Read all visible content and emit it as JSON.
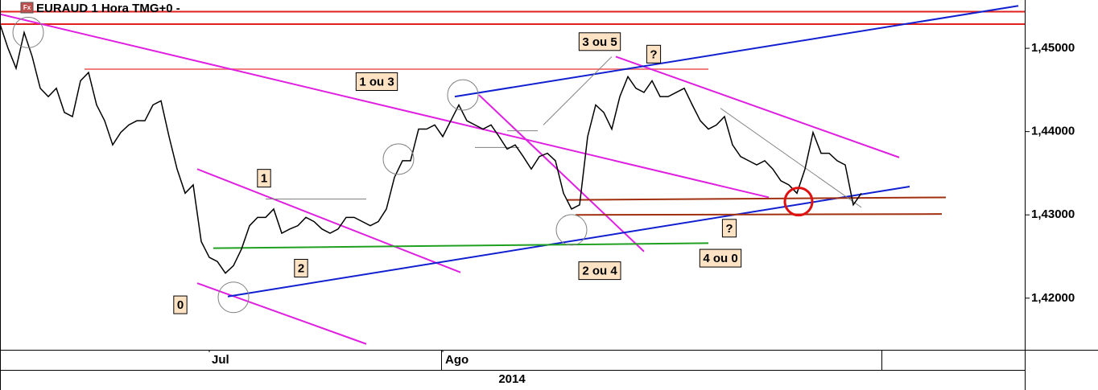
{
  "chart_data": {
    "type": "line",
    "title": "EURAUD 1 Hora TMG+0 -",
    "title_icon": "Fx",
    "period_label": "2014",
    "xlim": [
      0,
      127.3
    ],
    "xticks": [
      {
        "value": 26,
        "label": "Jul"
      },
      {
        "value": 55,
        "label": "Ago"
      }
    ],
    "ylim": [
      1.4138,
      1.4558
    ],
    "yticks": [
      {
        "value": 1.45,
        "label": "1,45000"
      },
      {
        "value": 1.44,
        "label": "1,44000"
      },
      {
        "value": 1.43,
        "label": "1,43000"
      },
      {
        "value": 1.42,
        "label": "1,42000"
      }
    ],
    "grid": false,
    "series": [
      {
        "color": "#000000",
        "values": [
          1.4529,
          1.45,
          1.4476,
          1.4519,
          1.449,
          1.4452,
          1.4442,
          1.4452,
          1.4423,
          1.4418,
          1.4461,
          1.4471,
          1.4432,
          1.4413,
          1.4384,
          1.4399,
          1.4408,
          1.4413,
          1.4413,
          1.4432,
          1.4437,
          1.4394,
          1.4355,
          1.4326,
          1.4336,
          1.4268,
          1.4249,
          1.4244,
          1.423,
          1.4239,
          1.4259,
          1.4287,
          1.4297,
          1.4297,
          1.4307,
          1.4278,
          1.4283,
          1.4287,
          1.4297,
          1.4292,
          1.4283,
          1.4278,
          1.4283,
          1.4297,
          1.4297,
          1.4292,
          1.4287,
          1.4292,
          1.4307,
          1.4345,
          1.4365,
          1.4365,
          1.4403,
          1.4403,
          1.4408,
          1.4394,
          1.4413,
          1.4432,
          1.4413,
          1.4408,
          1.4403,
          1.4408,
          1.4394,
          1.4379,
          1.4384,
          1.437,
          1.4355,
          1.437,
          1.4374,
          1.4365,
          1.4326,
          1.4307,
          1.4312,
          1.4394,
          1.4432,
          1.4423,
          1.4403,
          1.4442,
          1.4466,
          1.4452,
          1.4447,
          1.4461,
          1.4442,
          1.4442,
          1.4447,
          1.4452,
          1.4432,
          1.4413,
          1.4403,
          1.4408,
          1.4418,
          1.4384,
          1.437,
          1.4365,
          1.436,
          1.4365,
          1.4355,
          1.4341,
          1.4336,
          1.4326,
          1.4355,
          1.4399,
          1.4374,
          1.4374,
          1.4365,
          1.436,
          1.4312,
          1.4326
        ]
      }
    ],
    "trendlines": [
      {
        "color": "#e0201e",
        "x": [
          0,
          127.3
        ],
        "y": [
          1.4544,
          1.4544
        ]
      },
      {
        "color": "#e0201e",
        "x": [
          0,
          127.3
        ],
        "y": [
          1.4529,
          1.4529
        ]
      },
      {
        "color": "#f08080",
        "x": [
          10.5,
          88
        ],
        "y": [
          1.4475,
          1.4475
        ]
      },
      {
        "color": "#e020e0",
        "x": [
          0,
          95.5
        ],
        "y": [
          1.4541,
          1.4321
        ]
      },
      {
        "color": "#e020e0",
        "x": [
          24.5,
          57.2
        ],
        "y": [
          1.4355,
          1.4231
        ]
      },
      {
        "color": "#e020e0",
        "x": [
          24.5,
          45.5
        ],
        "y": [
          1.4218,
          1.4145
        ]
      },
      {
        "color": "#e020e0",
        "x": [
          59.5,
          80
        ],
        "y": [
          1.4444,
          1.4256
        ]
      },
      {
        "color": "#e020e0",
        "x": [
          76.5,
          111.7
        ],
        "y": [
          1.449,
          1.4369
        ]
      },
      {
        "color": "#1020d0",
        "x": [
          28.3,
          113
        ],
        "y": [
          1.4202,
          1.4334
        ]
      },
      {
        "color": "#1020d0",
        "x": [
          56.5,
          126.5
        ],
        "y": [
          1.4442,
          1.4551
        ]
      },
      {
        "color": "#20a020",
        "x": [
          26.5,
          88
        ],
        "y": [
          1.426,
          1.4266
        ]
      },
      {
        "color": "#a03010",
        "x": [
          70.5,
          117.5
        ],
        "y": [
          1.4318,
          1.4321
        ]
      },
      {
        "color": "#a03010",
        "x": [
          71.5,
          117
        ],
        "y": [
          1.43,
          1.4301
        ]
      },
      {
        "color": "#808080",
        "x": [
          33,
          45.5
        ],
        "y": [
          1.4319,
          1.4319
        ]
      },
      {
        "color": "#808080",
        "x": [
          67.5,
          76
        ],
        "y": [
          1.4408,
          1.449
        ]
      },
      {
        "color": "#808080",
        "x": [
          89.5,
          107
        ],
        "y": [
          1.4428,
          1.4309
        ]
      },
      {
        "color": "#808080",
        "x": [
          59,
          64.5
        ],
        "y": [
          1.4381,
          1.4381
        ]
      },
      {
        "color": "#808080",
        "x": [
          63,
          66.8
        ],
        "y": [
          1.4401,
          1.4401
        ]
      }
    ],
    "circles": [
      {
        "color": "#808080",
        "x": 3.5,
        "y": 1.4519
      },
      {
        "color": "#808080",
        "x": 29,
        "y": 1.4201
      },
      {
        "color": "#808080",
        "x": 49.5,
        "y": 1.4367
      },
      {
        "color": "#808080",
        "x": 57.5,
        "y": 1.4444
      },
      {
        "color": "#808080",
        "x": 71,
        "y": 1.4282
      },
      {
        "color": "#e01010",
        "x": 99.2,
        "y": 1.4316
      }
    ],
    "annotations": [
      {
        "label": "1 ou 3",
        "x": 46.8,
        "y": 1.446
      },
      {
        "label": "3 ou 5",
        "x": 74.5,
        "y": 1.4508
      },
      {
        "label": "?",
        "x": 81.2,
        "y": 1.4493
      },
      {
        "label": "1",
        "x": 32.8,
        "y": 1.4344
      },
      {
        "label": "2",
        "x": 37.4,
        "y": 1.4236
      },
      {
        "label": "0",
        "x": 22.4,
        "y": 1.4192
      },
      {
        "label": "2 ou 4",
        "x": 74.5,
        "y": 1.4233
      },
      {
        "label": "4 ou 0",
        "x": 89.5,
        "y": 1.4248
      },
      {
        "label": "?",
        "x": 90.6,
        "y": 1.4284
      }
    ]
  }
}
